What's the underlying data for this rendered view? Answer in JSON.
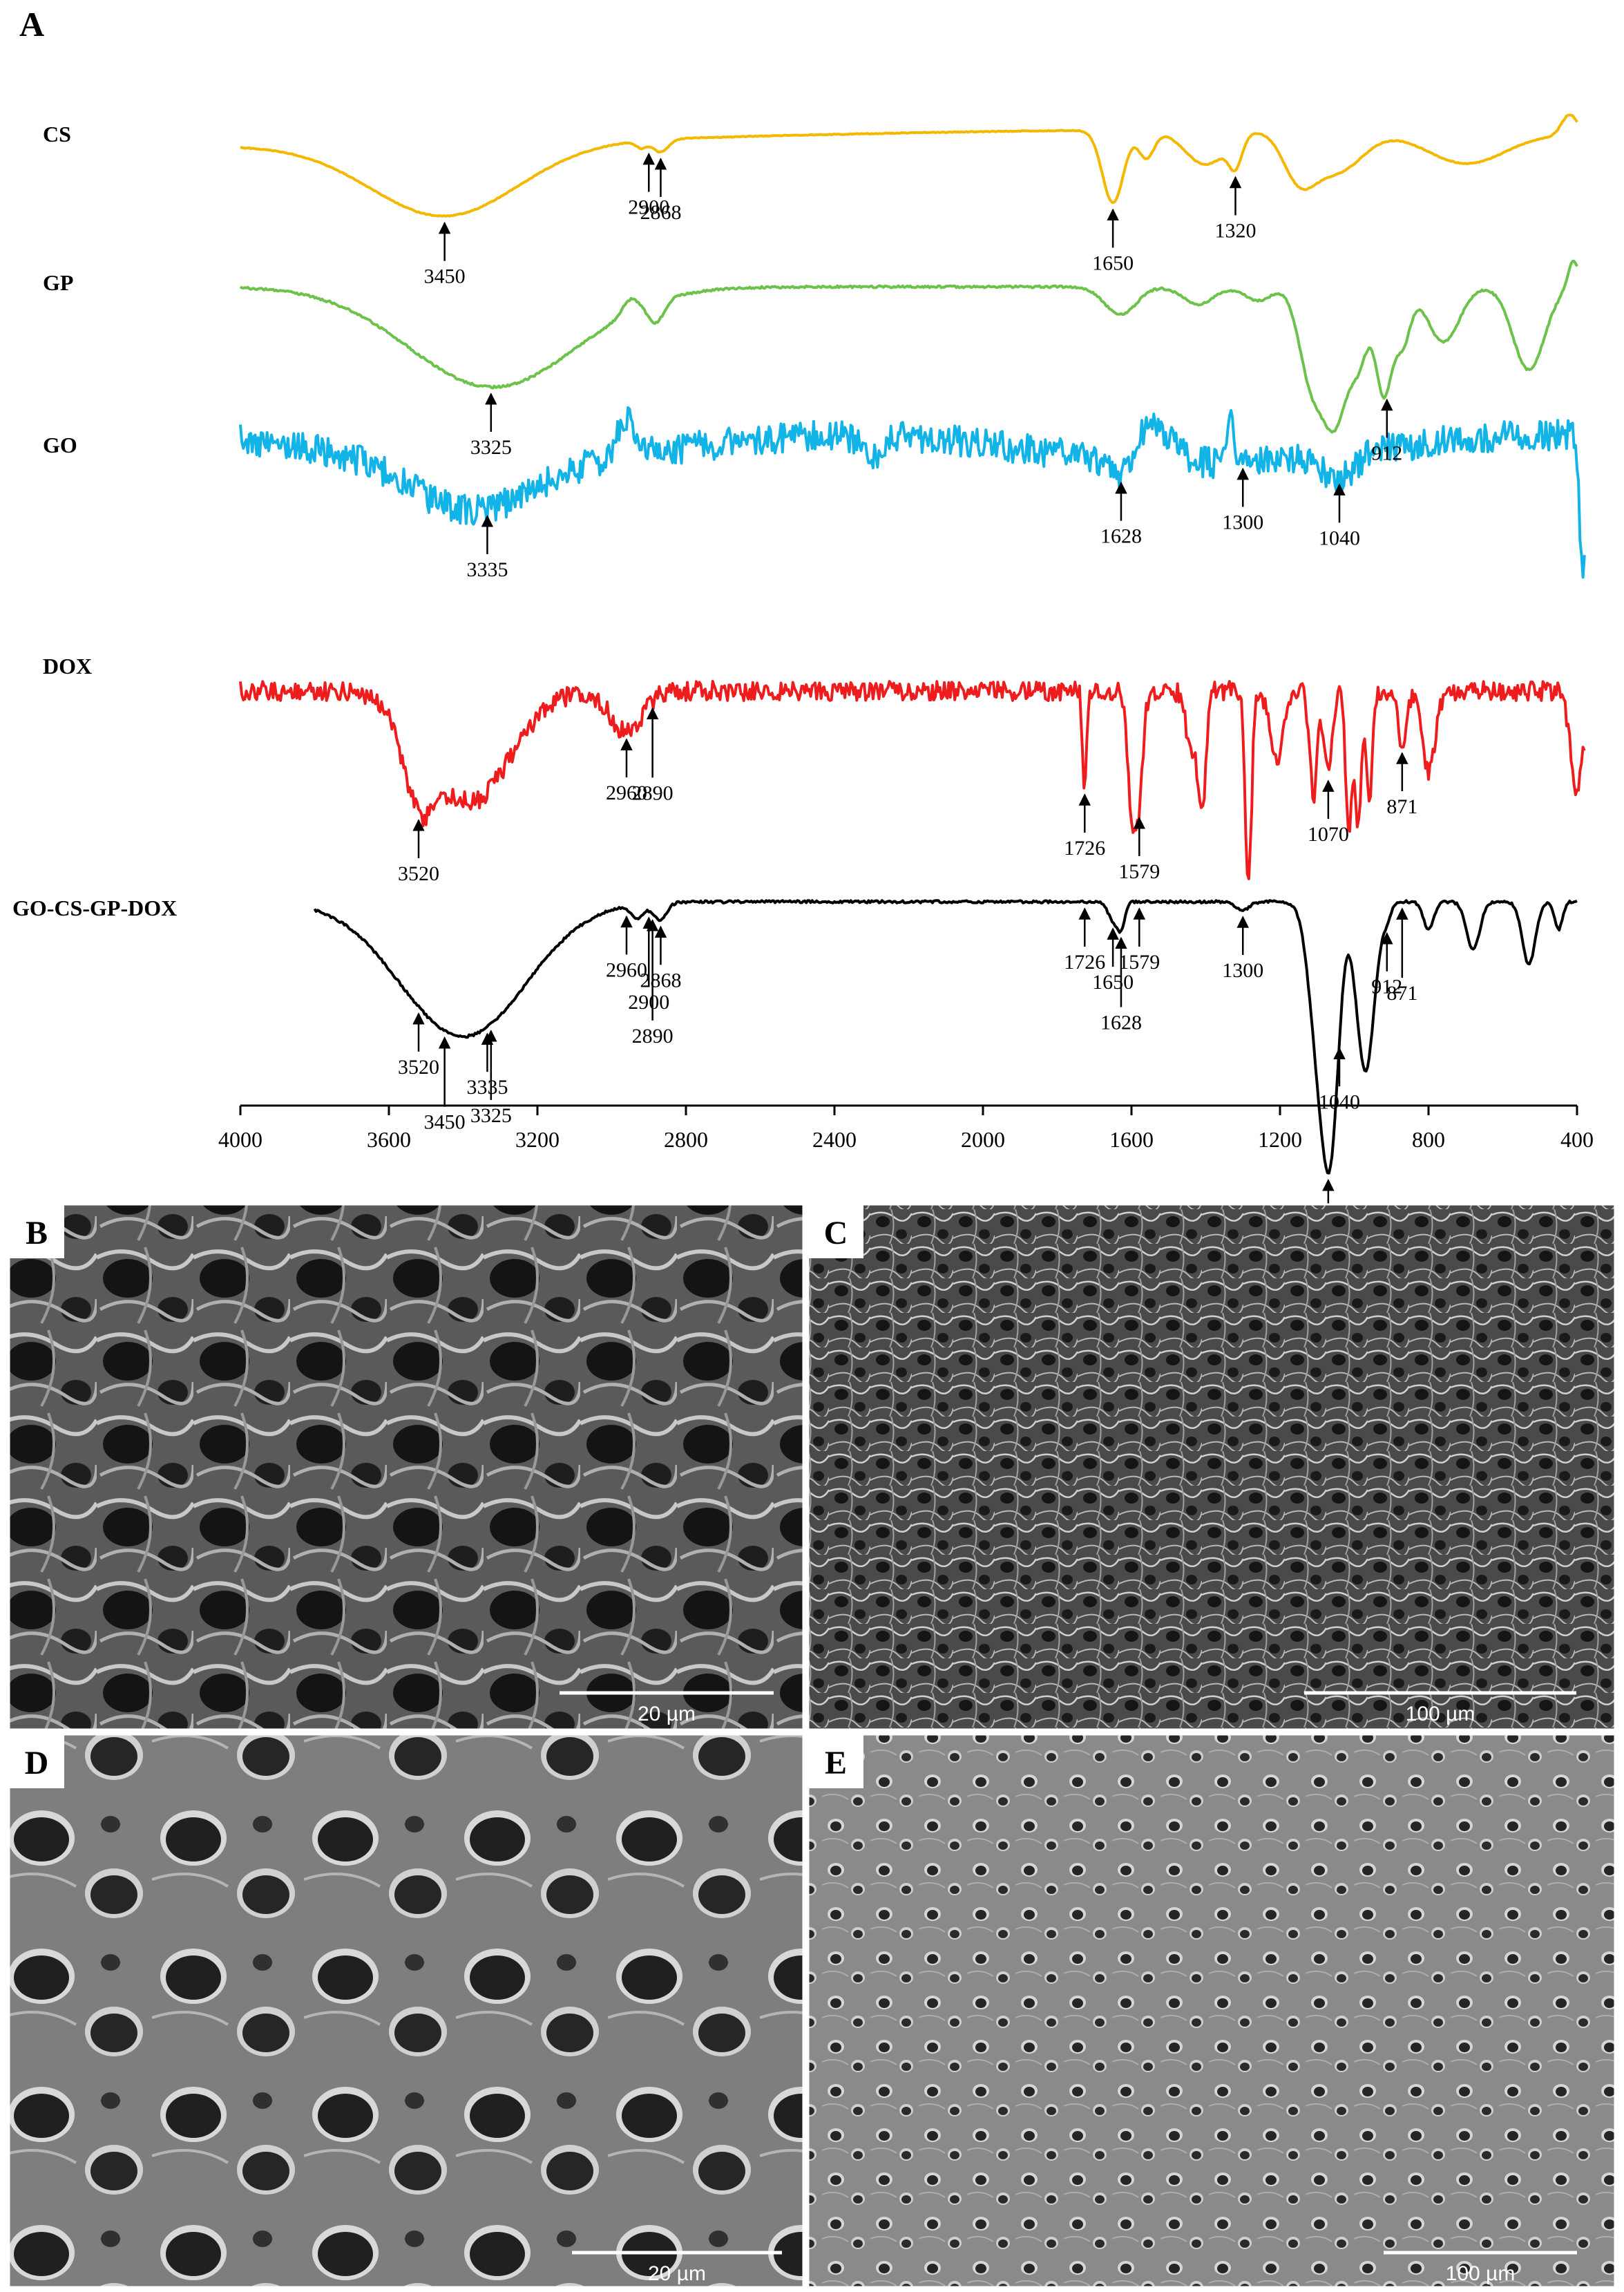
{
  "figure": {
    "panel_letter": "A",
    "sem_panels": [
      {
        "letter": "B",
        "scale_label": "20 µm",
        "texture": "coarse-fibrous"
      },
      {
        "letter": "C",
        "scale_label": "100 µm",
        "texture": "fine-fibrous"
      },
      {
        "letter": "D",
        "scale_label": "20 µm",
        "texture": "large-pores"
      },
      {
        "letter": "E",
        "scale_label": "100 µm",
        "texture": "small-pores"
      }
    ]
  },
  "chart_data": {
    "type": "line",
    "title": "",
    "xlabel": "",
    "ylabel": "",
    "xlim": [
      4000,
      400
    ],
    "x_ticks": [
      "4000",
      "3600",
      "3200",
      "2800",
      "2400",
      "2000",
      "1600",
      "1200",
      "800",
      "400"
    ],
    "grid": false,
    "series": [
      {
        "name": "CS",
        "color": "#F5B800",
        "annotations": [
          "3450",
          "2900",
          "2868",
          "1650",
          "1320"
        ]
      },
      {
        "name": "GP",
        "color": "#6CC24A",
        "annotations": [
          "3325",
          "912"
        ]
      },
      {
        "name": "GO",
        "color": "#12B4E8",
        "annotations": [
          "3335",
          "1628",
          "1300",
          "1040"
        ]
      },
      {
        "name": "DOX",
        "color": "#EE1C1C",
        "annotations": [
          "3520",
          "2960",
          "2890",
          "1726",
          "1579",
          "1070",
          "871"
        ]
      },
      {
        "name": "GO-CS-GP-DOX",
        "color": "#000000",
        "annotations": [
          "3520",
          "3450",
          "3335",
          "3325",
          "2960",
          "2900",
          "2890",
          "2868",
          "1726",
          "1650",
          "1628",
          "1579",
          "1300",
          "912",
          "871",
          "1070",
          "1040"
        ]
      }
    ]
  }
}
